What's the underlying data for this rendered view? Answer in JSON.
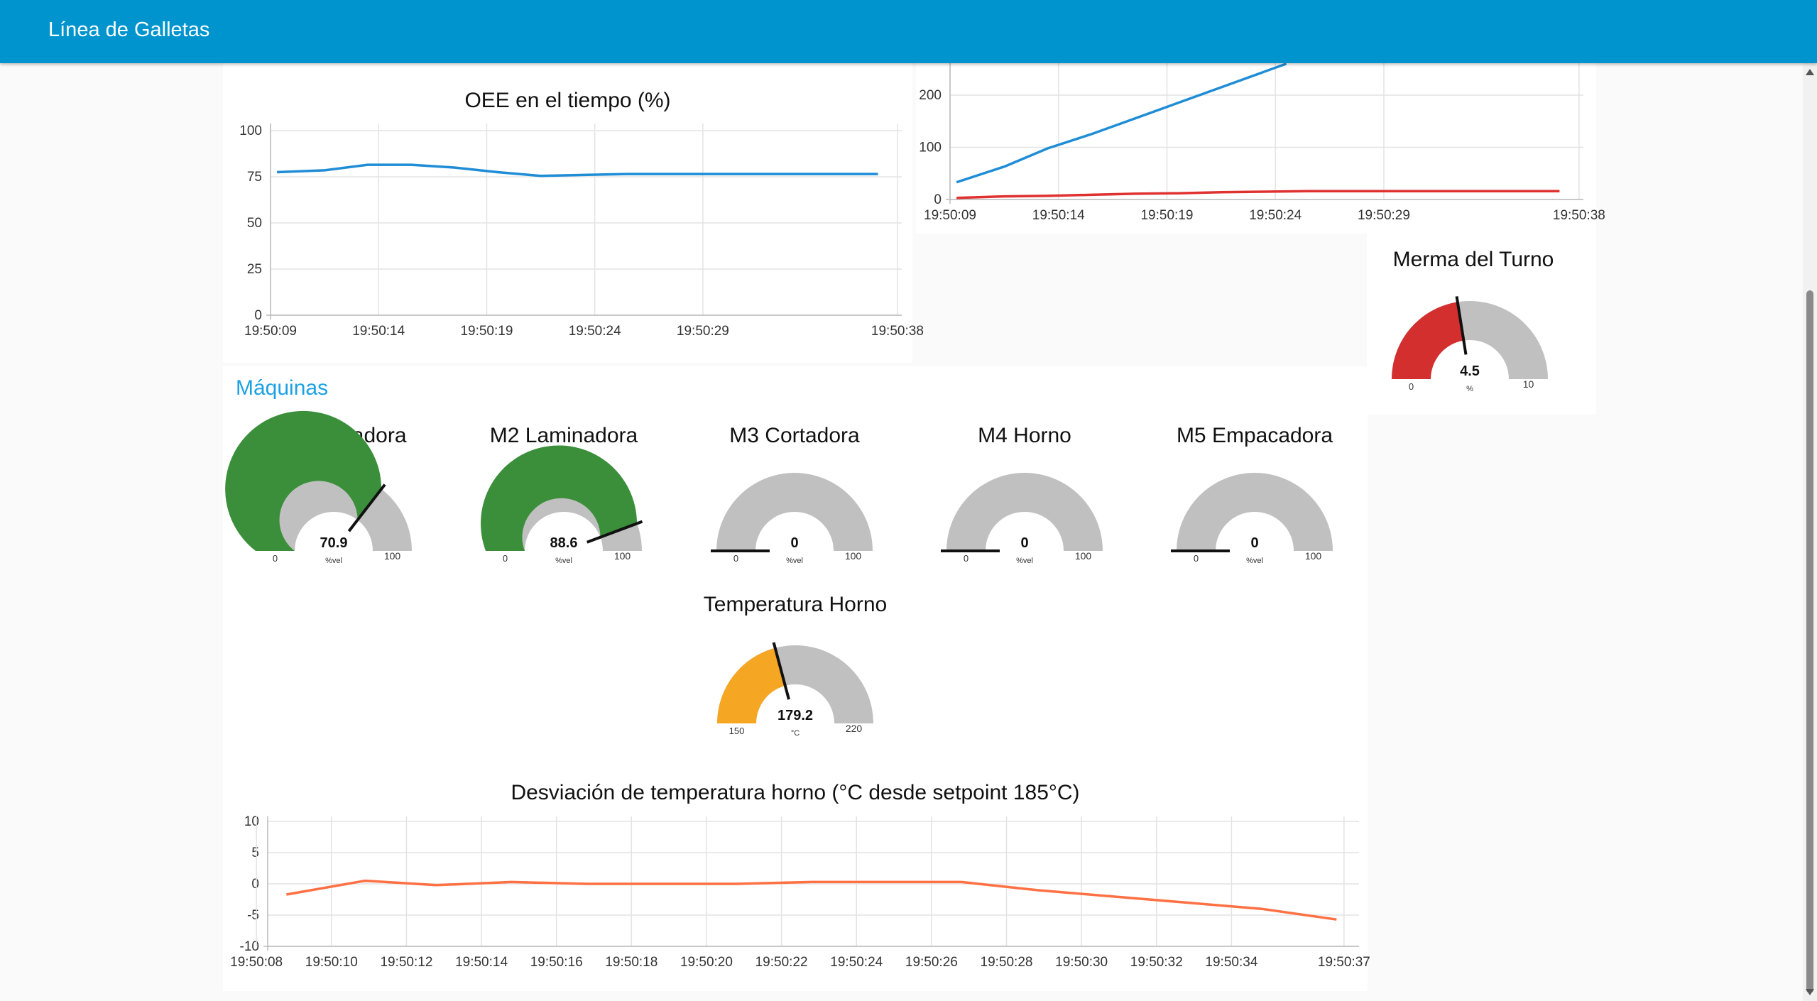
{
  "header": {
    "title": "Línea de Galletas"
  },
  "group": {
    "title": "Máquinas"
  },
  "oee_chart": {
    "title": "OEE en el tiempo (%)",
    "chart_data": {
      "type": "line",
      "title": "OEE en el tiempo (%)",
      "ylim": [
        0,
        100
      ],
      "yticks": [
        "100",
        "75",
        "50",
        "25",
        "0"
      ],
      "xticks": [
        "19:50:09",
        "19:50:14",
        "19:50:19",
        "19:50:24",
        "19:50:29",
        "19:50:38"
      ],
      "series": [
        {
          "color": "#1f8dd6",
          "x": [
            9.3,
            11.5,
            13.5,
            15.5,
            17.5,
            19.5,
            21.5,
            23.5,
            25.5,
            27.5,
            29.5,
            31.5,
            33.5,
            35.5,
            37.1
          ],
          "y": [
            77.5,
            78.5,
            81.5,
            81.5,
            80,
            77.5,
            75.5,
            76,
            76.5,
            76.5,
            76.5,
            76.5,
            76.5,
            76.5,
            76.5
          ]
        }
      ]
    }
  },
  "production_chart": {
    "chart_data": {
      "type": "line",
      "yticks": [
        "200",
        "100",
        "0"
      ],
      "xticks": [
        "19:50:09",
        "19:50:14",
        "19:50:19",
        "19:50:24",
        "19:50:29",
        "19:50:38"
      ],
      "series": [
        {
          "color": "#1f8dd6",
          "x": [
            9.3,
            11.5,
            13.5,
            15.5,
            17.5,
            19.5,
            21.5,
            23.5,
            24.5
          ],
          "y": [
            33,
            63,
            98,
            125,
            155,
            185,
            215,
            245,
            260
          ]
        },
        {
          "color": "#e03131",
          "x": [
            9.3,
            11.5,
            13.5,
            15.5,
            17.5,
            19.5,
            21.5,
            23.5,
            25.5,
            27.5,
            29.5,
            31.5,
            33.5,
            35.5,
            37.1
          ],
          "y": [
            3,
            6,
            7,
            9,
            11,
            12,
            14,
            15,
            16,
            16,
            16,
            16,
            16,
            16,
            16
          ]
        }
      ]
    }
  },
  "merma_gauge": {
    "title": "Merma del Turno",
    "value": "4.5",
    "unit": "%",
    "min": "0",
    "max": "10",
    "level": 4.5,
    "range": 10,
    "color": "#d32f2f"
  },
  "machines": [
    {
      "title": "M1 Mezcladora",
      "value": "70.9",
      "unit": "%vel",
      "min": "0",
      "max": "100",
      "level": 70.9,
      "range": 100,
      "color": "#3b8f3b"
    },
    {
      "title": "M2 Laminadora",
      "value": "88.6",
      "unit": "%vel",
      "min": "0",
      "max": "100",
      "level": 88.6,
      "range": 100,
      "color": "#3b8f3b"
    },
    {
      "title": "M3 Cortadora",
      "value": "0",
      "unit": "%vel",
      "min": "0",
      "max": "100",
      "level": 0,
      "range": 100,
      "color": "#3b8f3b"
    },
    {
      "title": "M4 Horno",
      "value": "0",
      "unit": "%vel",
      "min": "0",
      "max": "100",
      "level": 0,
      "range": 100,
      "color": "#3b8f3b"
    },
    {
      "title": "M5 Empacadora",
      "value": "0",
      "unit": "%vel",
      "min": "0",
      "max": "100",
      "level": 0,
      "range": 100,
      "color": "#3b8f3b"
    }
  ],
  "oven_gauge": {
    "title": "Temperatura Horno",
    "value": "179.2",
    "unit": "°C",
    "min": "150",
    "max": "220",
    "level": 29.2,
    "range": 70,
    "color": "#f5a623"
  },
  "deviation_chart": {
    "title": "Desviación de temperatura horno (°C desde setpoint 185°C)",
    "chart_data": {
      "type": "line",
      "title": "Desviación de temperatura horno (°C desde setpoint 185°C)",
      "ylim": [
        -10,
        10
      ],
      "yticks": [
        "10",
        "5",
        "0",
        "-5",
        "-10"
      ],
      "xticks": [
        "19:50:08",
        "19:50:10",
        "19:50:12",
        "19:50:14",
        "19:50:16",
        "19:50:18",
        "19:50:20",
        "19:50:22",
        "19:50:24",
        "19:50:26",
        "19:50:28",
        "19:50:30",
        "19:50:32",
        "19:50:34",
        "19:50:37"
      ],
      "series": [
        {
          "color": "#ff7043",
          "x": [
            8.8,
            10.9,
            12.8,
            14.8,
            16.8,
            18.8,
            20.8,
            22.8,
            24.8,
            26.8,
            28.8,
            30.8,
            32.8,
            34.8,
            36.8
          ],
          "y": [
            -1.7,
            0.5,
            -0.2,
            0.3,
            0,
            0,
            0,
            0.3,
            0.3,
            0.3,
            -1,
            -2,
            -3,
            -4,
            -5.7
          ]
        }
      ]
    }
  }
}
